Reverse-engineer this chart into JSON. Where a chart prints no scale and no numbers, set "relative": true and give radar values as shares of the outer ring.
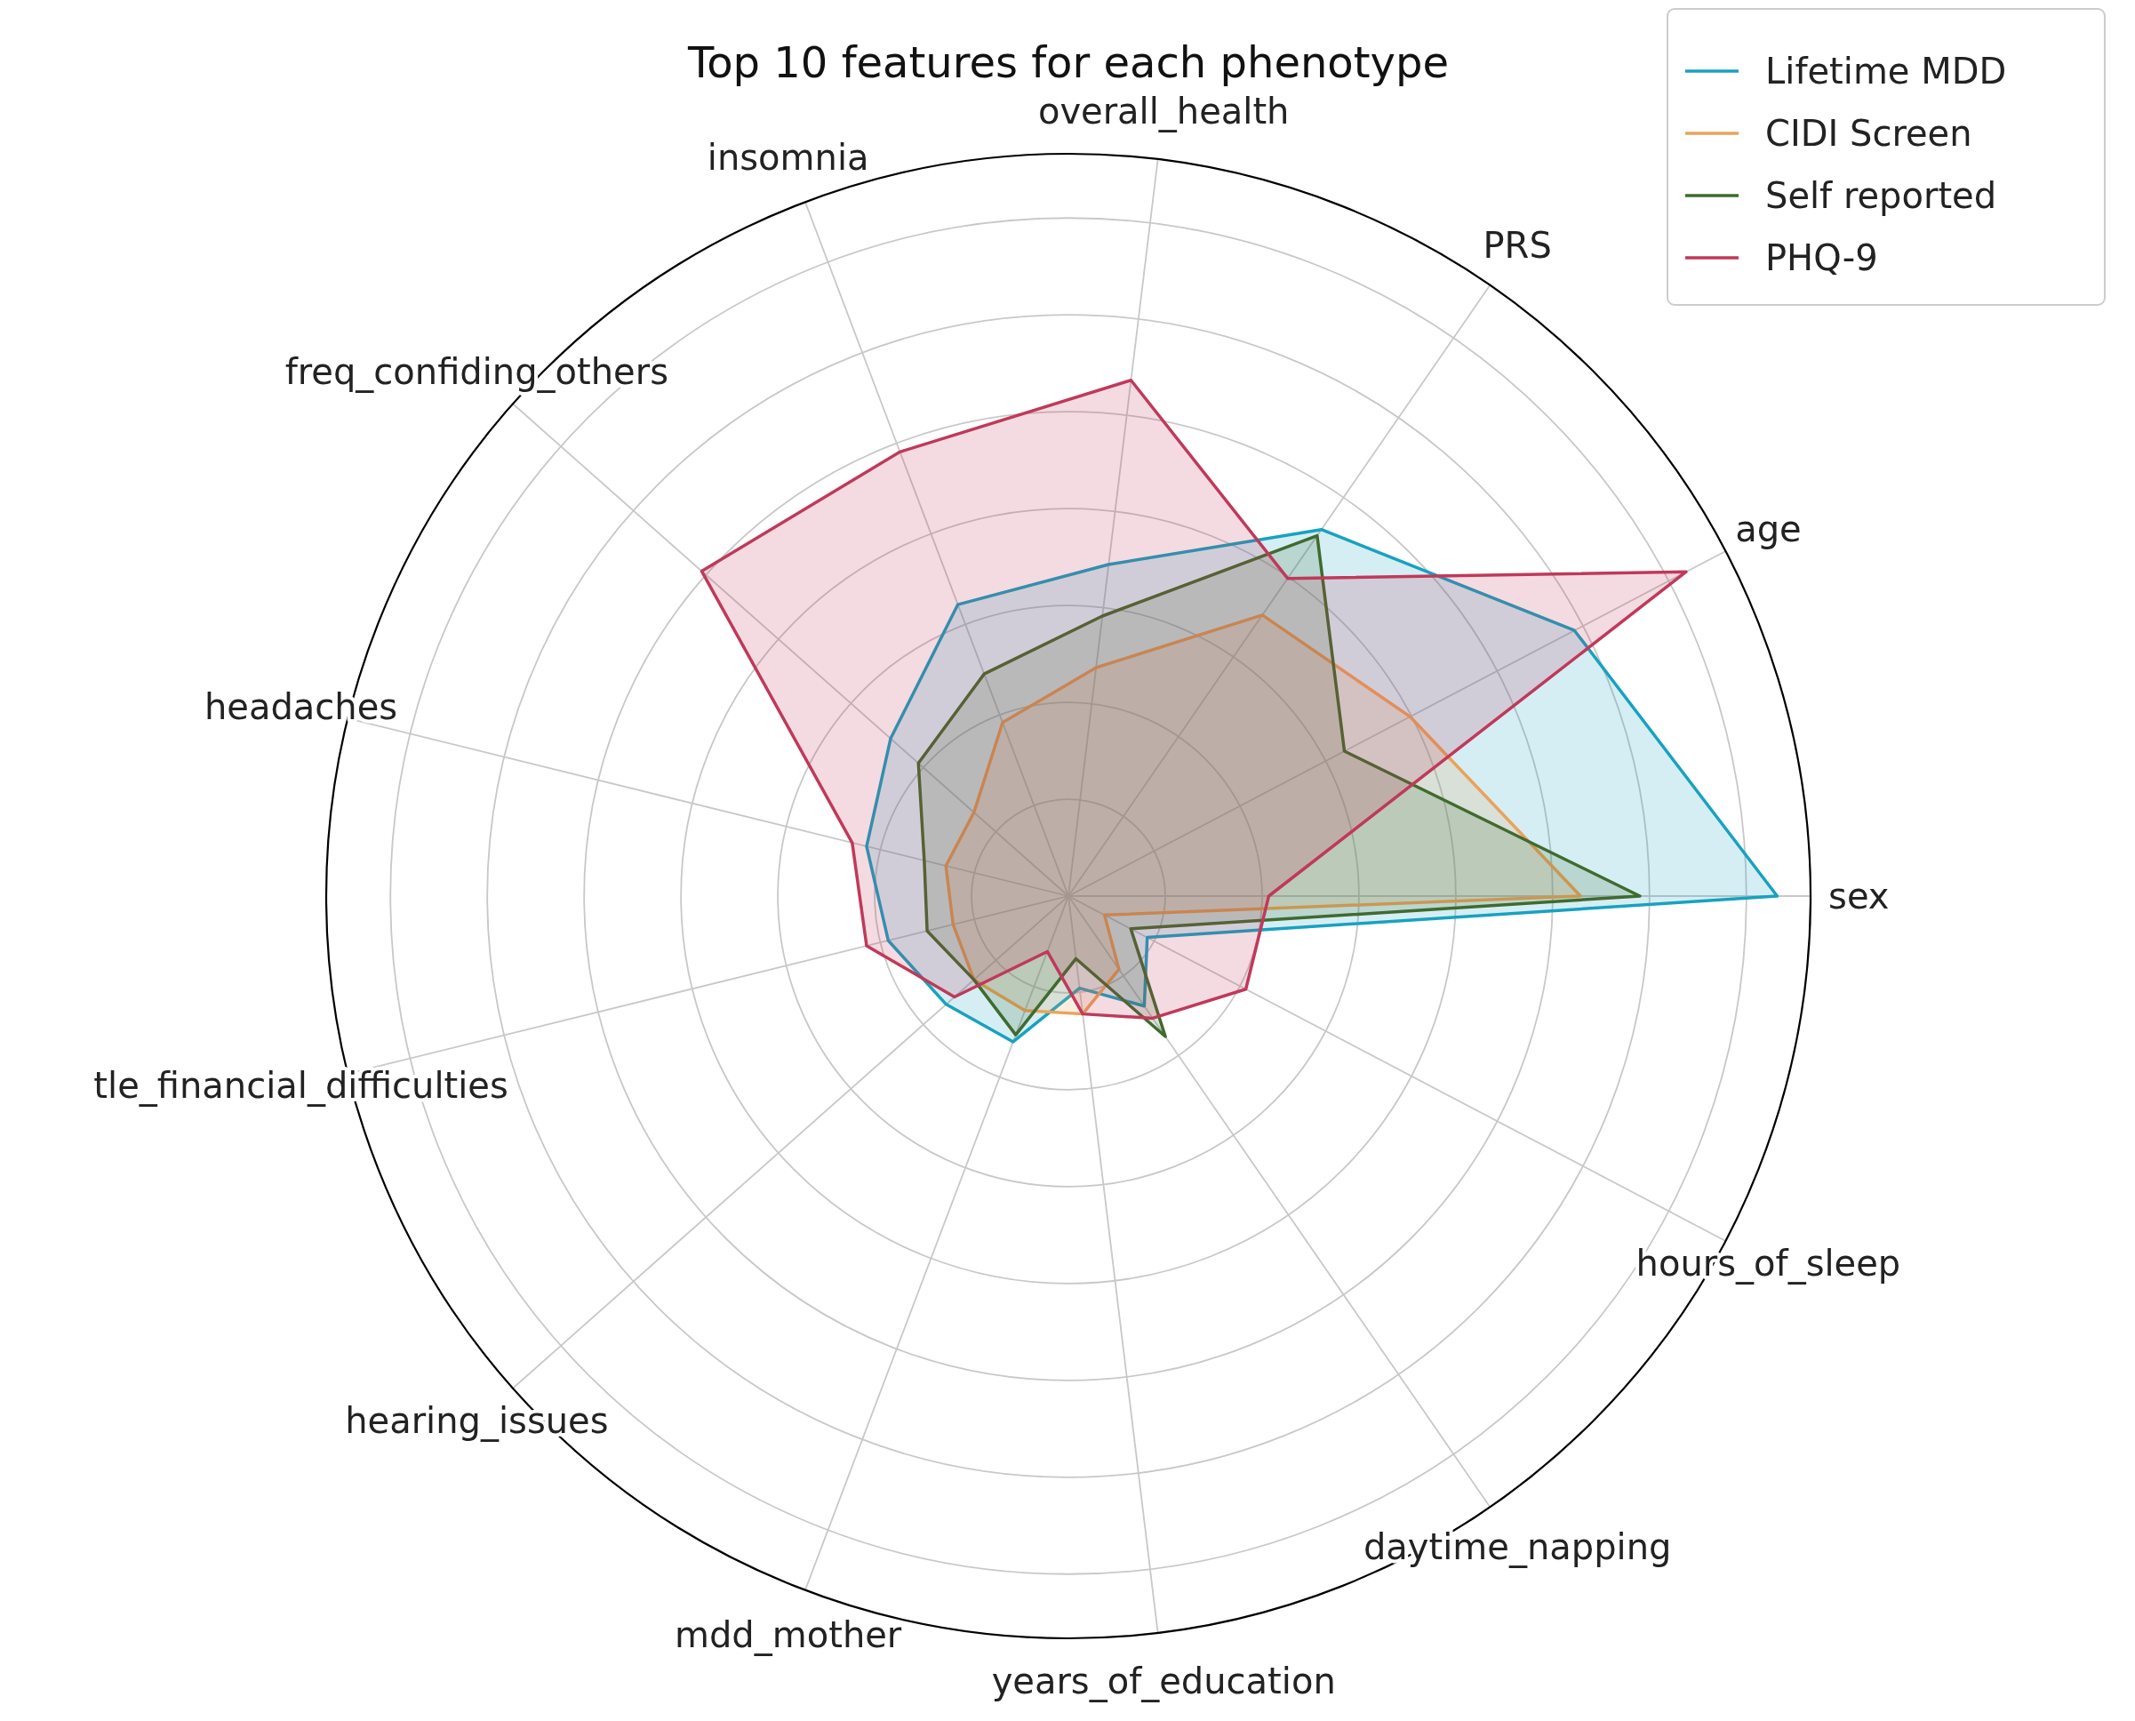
{
  "chart_data": {
    "type": "radar",
    "title": "Top 10 features for each phenotype",
    "relative": true,
    "grid": true,
    "legend": "top right",
    "categories": [
      "overall_health",
      "PRS",
      "age",
      "sex",
      "hours_of_sleep",
      "daytime_napping",
      "years_of_education",
      "mdd_mother",
      "hearing_issues",
      "tle_financial_difficulties",
      "headaches",
      "freq_confiding_others",
      "insomnia"
    ],
    "series": [
      {
        "name": "Lifetime MDD",
        "color": "#17a2c0",
        "values": [
          0.45,
          0.6,
          0.77,
          0.955,
          0.12,
          0.18,
          0.125,
          0.21,
          0.22,
          0.25,
          0.28,
          0.32,
          0.42
        ]
      },
      {
        "name": "CIDI Screen",
        "color": "#eba25a",
        "values": [
          0.31,
          0.46,
          0.52,
          0.69,
          0.055,
          0.12,
          0.16,
          0.165,
          0.17,
          0.16,
          0.17,
          0.17,
          0.25
        ]
      },
      {
        "name": "Self reported",
        "color": "#3f6b2e",
        "values": [
          0.38,
          0.59,
          0.42,
          0.77,
          0.095,
          0.23,
          0.085,
          0.2,
          0.17,
          0.196,
          0.2,
          0.27,
          0.32
        ]
      },
      {
        "name": "PHQ-9",
        "color": "#c0395a",
        "values": [
          0.7,
          0.52,
          0.94,
          0.27,
          0.27,
          0.2,
          0.16,
          0.08,
          0.205,
          0.28,
          0.3,
          0.66,
          0.64
        ]
      }
    ]
  }
}
